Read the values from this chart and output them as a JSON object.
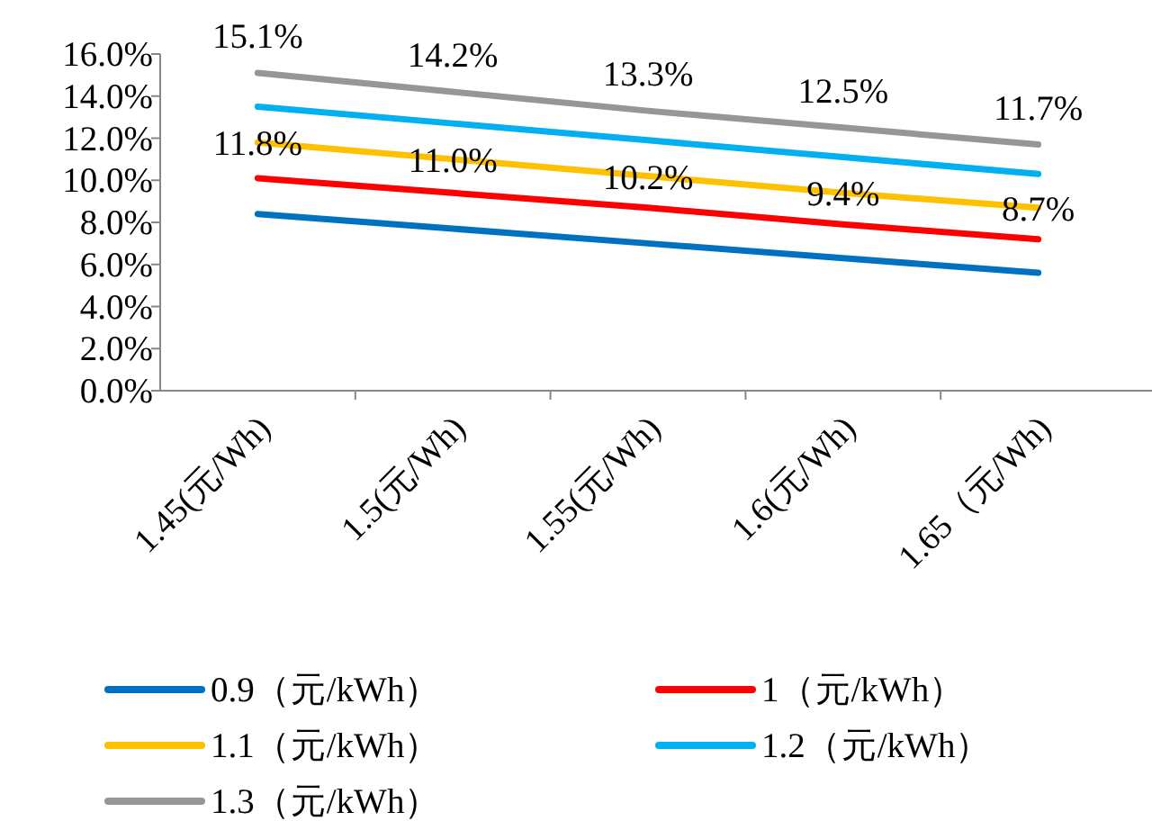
{
  "chart_data": {
    "type": "line",
    "categories": [
      "1.45(元/Wh)",
      "1.5(元/Wh)",
      "1.55(元/Wh)",
      "1.6(元/Wh)",
      "1.65（元/Wh)"
    ],
    "ylim": [
      0,
      16
    ],
    "yticks": [
      {
        "value": 0,
        "label": "0.0%"
      },
      {
        "value": 2,
        "label": "2.0%"
      },
      {
        "value": 4,
        "label": "4.0%"
      },
      {
        "value": 6,
        "label": "6.0%"
      },
      {
        "value": 8,
        "label": "8.0%"
      },
      {
        "value": 10,
        "label": "10.0%"
      },
      {
        "value": 12,
        "label": "12.0%"
      },
      {
        "value": 14,
        "label": "14.0%"
      },
      {
        "value": 16,
        "label": "16.0%"
      }
    ],
    "legend": "bottom",
    "series": [
      {
        "name": "0.9（元/kWh）",
        "color": "#0070c0",
        "values": [
          8.4,
          7.7,
          7.0,
          6.3,
          5.6
        ]
      },
      {
        "name": "1（元/kWh）",
        "color": "#ff0000",
        "values": [
          10.1,
          9.4,
          8.7,
          7.9,
          7.2
        ]
      },
      {
        "name": "1.1（元/kWh）",
        "color": "#ffc000",
        "values": [
          11.8,
          11.0,
          10.2,
          9.4,
          8.7
        ],
        "value_labels": [
          "11.8%",
          "11.0%",
          "10.2%",
          "9.4%",
          "8.7%"
        ]
      },
      {
        "name": "1.2（元/kWh）",
        "color": "#00b0f0",
        "values": [
          13.5,
          12.7,
          11.9,
          11.1,
          10.3
        ]
      },
      {
        "name": "1.3（元/kWh）",
        "color": "#969696",
        "values": [
          15.1,
          14.2,
          13.3,
          12.5,
          11.7
        ],
        "value_labels": [
          "15.1%",
          "14.2%",
          "13.3%",
          "12.5%",
          "11.7%"
        ]
      }
    ]
  }
}
